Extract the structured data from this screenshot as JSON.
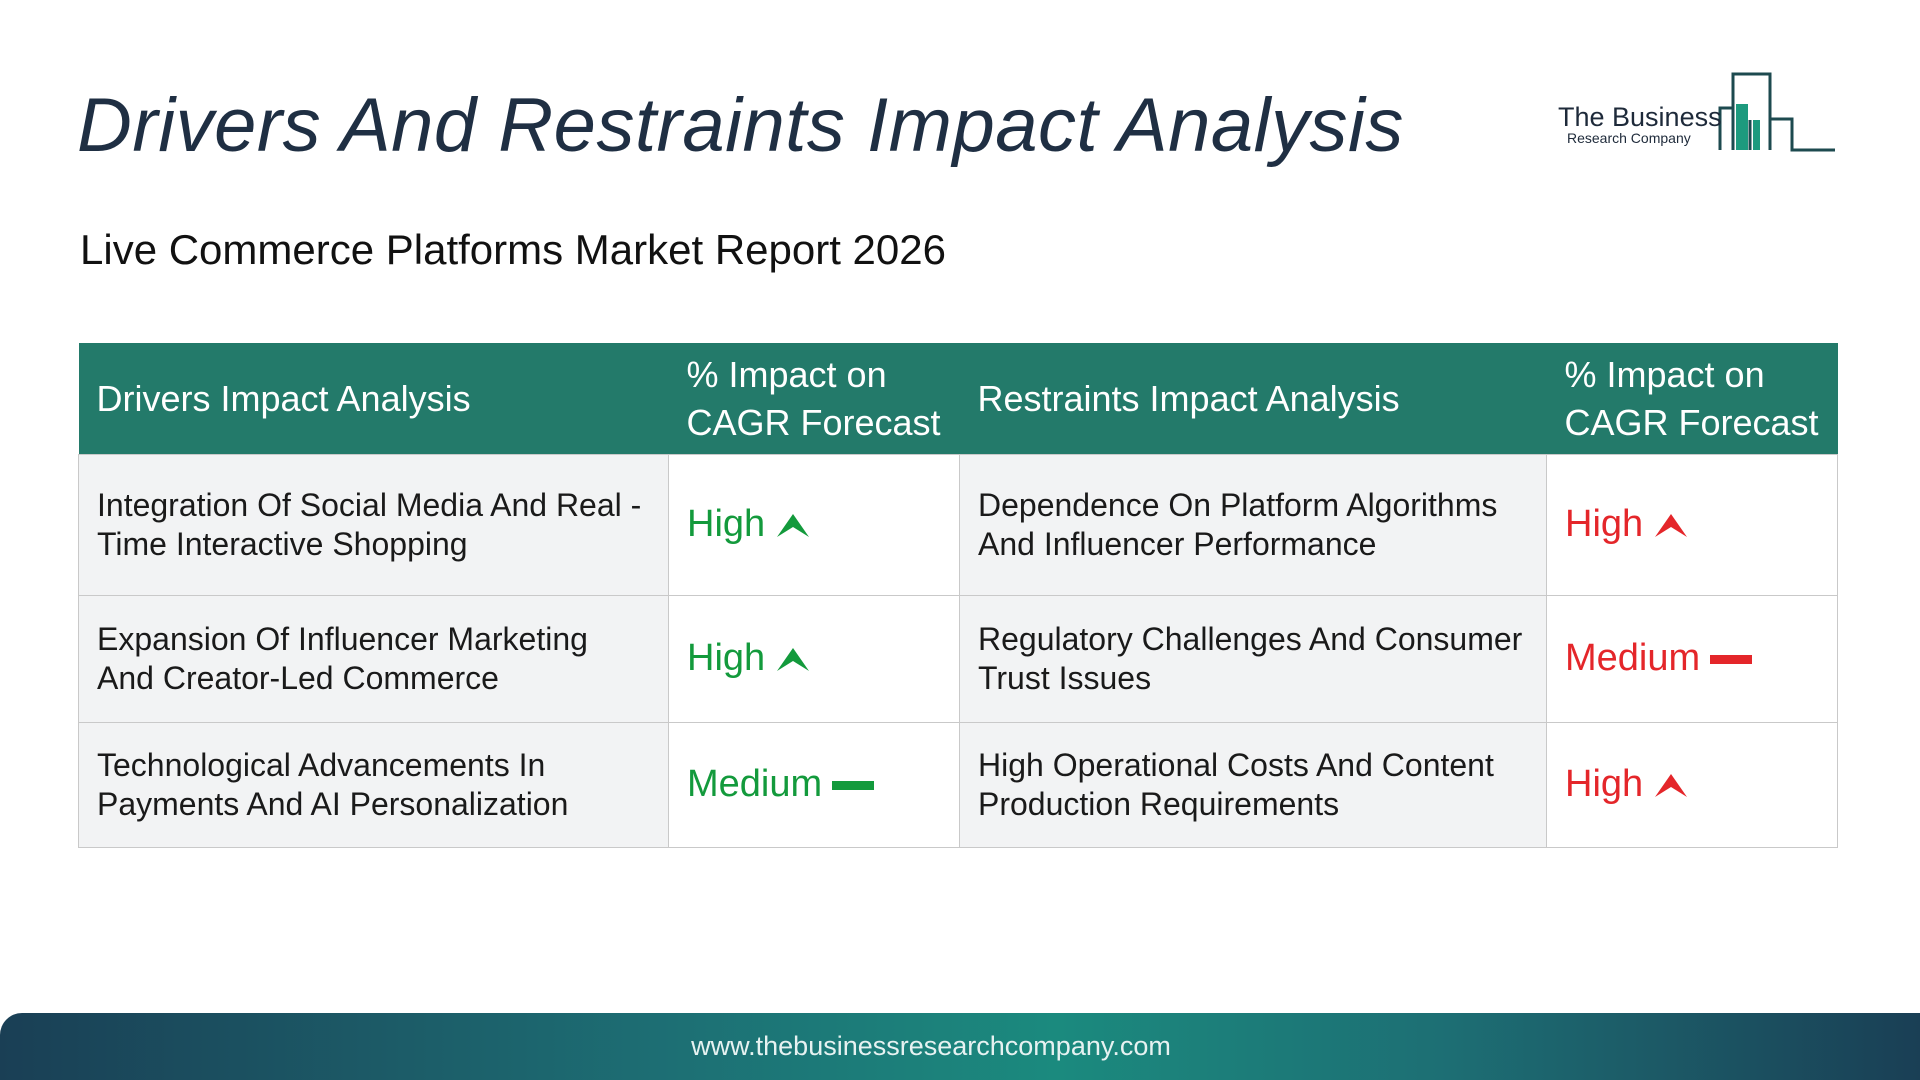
{
  "header": {
    "title": "Drivers And Restraints Impact Analysis",
    "subtitle": "Live Commerce Platforms Market Report 2026"
  },
  "logo": {
    "line1": "The Business",
    "line2": "Research Company",
    "color": "#1d9a7e"
  },
  "table": {
    "headers": {
      "drivers": "Drivers Impact Analysis",
      "drivers_impact": "% Impact on CAGR Forecast",
      "restraints": "Restraints Impact Analysis",
      "restraints_impact": "% Impact on CAGR Forecast"
    },
    "rows": [
      {
        "driver": "Integration Of Social Media And Real -Time Interactive Shopping",
        "driver_impact": "High",
        "driver_icon": "up-arrow-icon",
        "restraint": "Dependence On Platform Algorithms And Influencer Performance",
        "restraint_impact": "High",
        "restraint_icon": "up-arrow-icon"
      },
      {
        "driver": "Expansion Of Influencer Marketing And Creator-Led Commerce",
        "driver_impact": "High",
        "driver_icon": "up-arrow-icon",
        "restraint": "Regulatory Challenges And Consumer Trust Issues",
        "restraint_impact": "Medium",
        "restraint_icon": "dash-icon"
      },
      {
        "driver": "Technological Advancements In Payments And AI Personalization",
        "driver_impact": "Medium",
        "driver_icon": "dash-icon",
        "restraint": "High Operational Costs And Content Production Requirements",
        "restraint_impact": "High",
        "restraint_icon": "up-arrow-icon"
      }
    ],
    "colors": {
      "header_bg": "#237a6a",
      "driver_green": "#139a3c",
      "restraint_red": "#e4262a"
    }
  },
  "footer": {
    "url": "www.thebusinessresearchcompany.com"
  }
}
